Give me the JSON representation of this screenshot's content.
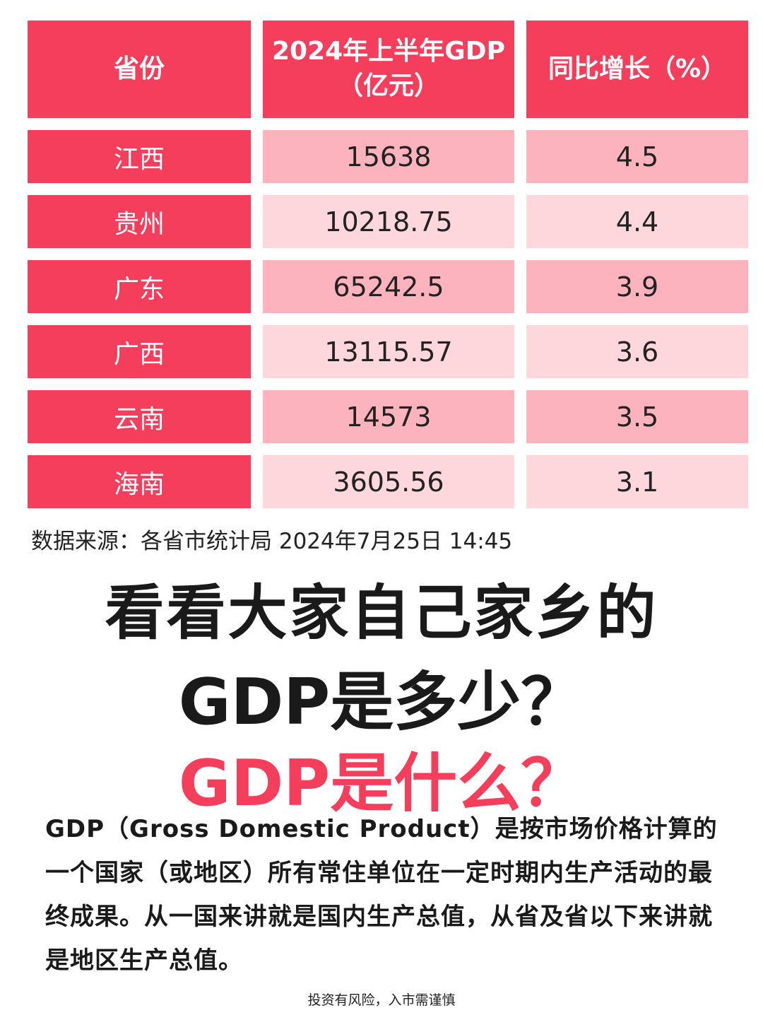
{
  "table": {
    "headers": [
      "省份",
      "2024年上半年GDP（亿元）",
      "同比增长（%）"
    ],
    "rows": [
      {
        "province": "江西",
        "gdp": "15638",
        "growth": "4.5"
      },
      {
        "province": "贵州",
        "gdp": "10218.75",
        "growth": "4.4"
      },
      {
        "province": "广东",
        "gdp": "65242.5",
        "growth": "3.9"
      },
      {
        "province": "广西",
        "gdp": "13115.57",
        "growth": "3.6"
      },
      {
        "province": "云南",
        "gdp": "14573",
        "growth": "3.5"
      },
      {
        "province": "海南",
        "gdp": "3605.56",
        "growth": "3.1"
      }
    ]
  },
  "source": "数据来源：各省市统计局 2024年7月25日 14:45",
  "headline": {
    "line1": "看看大家自己家乡的",
    "line2": "GDP是多少？",
    "line3": "GDP是什么？"
  },
  "paragraph": "GDP（Gross Domestic Product）是按市场价格计算的一个国家（或地区）所有常住单位在一定时期内生产活动的最终成果。从一国来讲就是国内生产总值，从省及省以下来讲就是地区生产总值。",
  "footer": "投资有风险，入市需谨慎",
  "colors": {
    "accent": "#f53d5c",
    "row_light": "#fdd7dc",
    "row_mid": "#fdb3bd"
  }
}
